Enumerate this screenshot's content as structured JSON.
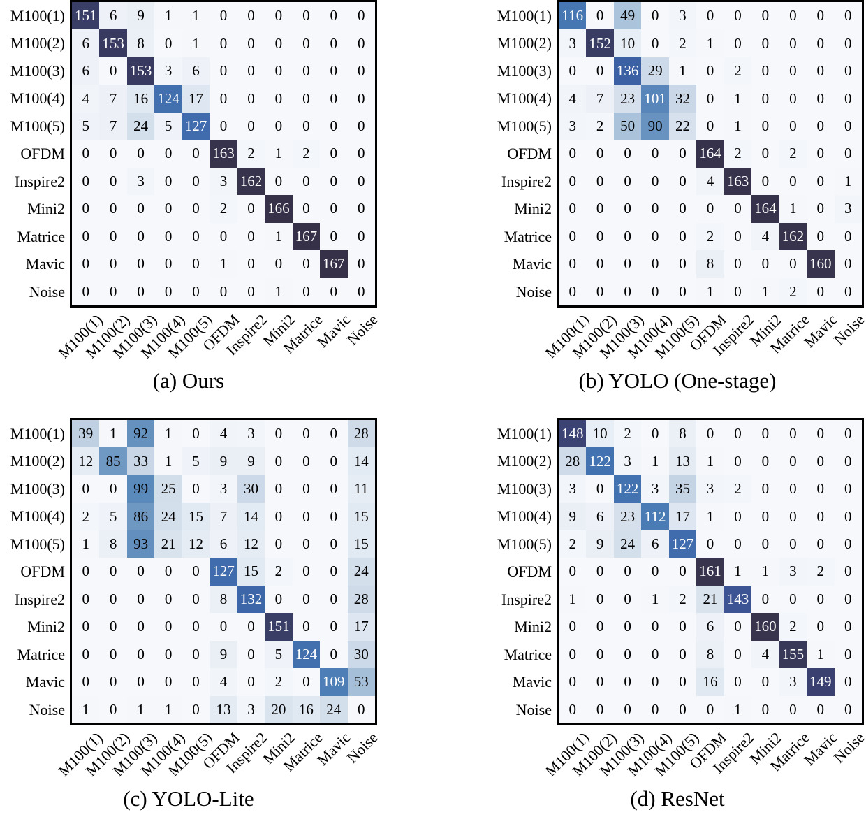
{
  "figure": {
    "background": "#ffffff",
    "grid_border_color": "#000000",
    "text_color": "#000000",
    "colormap": {
      "vmin": 0,
      "vmax": 167,
      "text_dark": "#000000",
      "text_light": "#ffffff",
      "white_text_threshold": 100,
      "stops": [
        [
          0,
          "#f6f8fb"
        ],
        [
          6,
          "#eef2f8"
        ],
        [
          12,
          "#e5ecf4"
        ],
        [
          18,
          "#dde6f0"
        ],
        [
          24,
          "#d4dfec"
        ],
        [
          30,
          "#ccd9e8"
        ],
        [
          36,
          "#c3d3e4"
        ],
        [
          45,
          "#b3c9de"
        ],
        [
          55,
          "#a1bdd7"
        ],
        [
          70,
          "#84a7ca"
        ],
        [
          85,
          "#6f99c2"
        ],
        [
          95,
          "#608dbd"
        ],
        [
          105,
          "#5282b8"
        ],
        [
          115,
          "#4778b3"
        ],
        [
          124,
          "#4270af"
        ],
        [
          132,
          "#3d66a9"
        ],
        [
          138,
          "#3c5da1"
        ],
        [
          143,
          "#3c5494"
        ],
        [
          148,
          "#3b4374"
        ],
        [
          153,
          "#383a5f"
        ],
        [
          158,
          "#393550"
        ],
        [
          167,
          "#363148"
        ]
      ]
    }
  },
  "chart_data": [
    {
      "type": "heatmap",
      "title": "(a) Ours",
      "x_labels": [
        "M100(1)",
        "M100(2)",
        "M100(3)",
        "M100(4)",
        "M100(5)",
        "OFDM",
        "Inspire2",
        "Mini2",
        "Matrice",
        "Mavic",
        "Noise"
      ],
      "y_labels": [
        "M100(1)",
        "M100(2)",
        "M100(3)",
        "M100(4)",
        "M100(5)",
        "OFDM",
        "Inspire2",
        "Mini2",
        "Matrice",
        "Mavic",
        "Noise"
      ],
      "values": [
        [
          151,
          6,
          9,
          1,
          1,
          0,
          0,
          0,
          0,
          0,
          0
        ],
        [
          6,
          153,
          8,
          0,
          1,
          0,
          0,
          0,
          0,
          0,
          0
        ],
        [
          6,
          0,
          153,
          3,
          6,
          0,
          0,
          0,
          0,
          0,
          0
        ],
        [
          4,
          7,
          16,
          124,
          17,
          0,
          0,
          0,
          0,
          0,
          0
        ],
        [
          5,
          7,
          24,
          5,
          127,
          0,
          0,
          0,
          0,
          0,
          0
        ],
        [
          0,
          0,
          0,
          0,
          0,
          163,
          2,
          1,
          2,
          0,
          0
        ],
        [
          0,
          0,
          3,
          0,
          0,
          3,
          162,
          0,
          0,
          0,
          0
        ],
        [
          0,
          0,
          0,
          0,
          0,
          2,
          0,
          166,
          0,
          0,
          0
        ],
        [
          0,
          0,
          0,
          0,
          0,
          0,
          0,
          1,
          167,
          0,
          0
        ],
        [
          0,
          0,
          0,
          0,
          0,
          1,
          0,
          0,
          0,
          167,
          0
        ],
        [
          0,
          0,
          0,
          0,
          0,
          0,
          0,
          1,
          0,
          0,
          0
        ]
      ]
    },
    {
      "type": "heatmap",
      "title": "(b) YOLO (One-stage)",
      "x_labels": [
        "M100(1)",
        "M100(2)",
        "M100(3)",
        "M100(4)",
        "M100(5)",
        "OFDM",
        "Inspire2",
        "Mini2",
        "Matrice",
        "Mavic",
        "Noise"
      ],
      "y_labels": [
        "M100(1)",
        "M100(2)",
        "M100(3)",
        "M100(4)",
        "M100(5)",
        "OFDM",
        "Inspire2",
        "Mini2",
        "Matrice",
        "Mavic",
        "Noise"
      ],
      "values": [
        [
          116,
          0,
          49,
          0,
          3,
          0,
          0,
          0,
          0,
          0,
          0
        ],
        [
          3,
          152,
          10,
          0,
          2,
          1,
          0,
          0,
          0,
          0,
          0
        ],
        [
          0,
          0,
          136,
          29,
          1,
          0,
          2,
          0,
          0,
          0,
          0
        ],
        [
          4,
          7,
          23,
          101,
          32,
          0,
          1,
          0,
          0,
          0,
          0
        ],
        [
          3,
          2,
          50,
          90,
          22,
          0,
          1,
          0,
          0,
          0,
          0
        ],
        [
          0,
          0,
          0,
          0,
          0,
          164,
          2,
          0,
          2,
          0,
          0
        ],
        [
          0,
          0,
          0,
          0,
          0,
          4,
          163,
          0,
          0,
          0,
          1
        ],
        [
          0,
          0,
          0,
          0,
          0,
          0,
          0,
          164,
          1,
          0,
          3
        ],
        [
          0,
          0,
          0,
          0,
          0,
          2,
          0,
          4,
          162,
          0,
          0
        ],
        [
          0,
          0,
          0,
          0,
          0,
          8,
          0,
          0,
          0,
          160,
          0
        ],
        [
          0,
          0,
          0,
          0,
          0,
          1,
          0,
          1,
          2,
          0,
          0
        ]
      ]
    },
    {
      "type": "heatmap",
      "title": "(c) YOLO-Lite",
      "x_labels": [
        "M100(1)",
        "M100(2)",
        "M100(3)",
        "M100(4)",
        "M100(5)",
        "OFDM",
        "Inspire2",
        "Mini2",
        "Matrice",
        "Mavic",
        "Noise"
      ],
      "y_labels": [
        "M100(1)",
        "M100(2)",
        "M100(3)",
        "M100(4)",
        "M100(5)",
        "OFDM",
        "Inspire2",
        "Mini2",
        "Matrice",
        "Mavic",
        "Noise"
      ],
      "values": [
        [
          39,
          1,
          92,
          1,
          0,
          4,
          3,
          0,
          0,
          0,
          28
        ],
        [
          12,
          85,
          33,
          1,
          5,
          9,
          9,
          0,
          0,
          0,
          14
        ],
        [
          0,
          0,
          99,
          25,
          0,
          3,
          30,
          0,
          0,
          0,
          11
        ],
        [
          2,
          5,
          86,
          24,
          15,
          7,
          14,
          0,
          0,
          0,
          15
        ],
        [
          1,
          8,
          93,
          21,
          12,
          6,
          12,
          0,
          0,
          0,
          15
        ],
        [
          0,
          0,
          0,
          0,
          0,
          127,
          15,
          2,
          0,
          0,
          24
        ],
        [
          0,
          0,
          0,
          0,
          0,
          8,
          132,
          0,
          0,
          0,
          28
        ],
        [
          0,
          0,
          0,
          0,
          0,
          0,
          0,
          151,
          0,
          0,
          17
        ],
        [
          0,
          0,
          0,
          0,
          0,
          9,
          0,
          5,
          124,
          0,
          30
        ],
        [
          0,
          0,
          0,
          0,
          0,
          4,
          0,
          2,
          0,
          109,
          53
        ],
        [
          1,
          0,
          1,
          1,
          0,
          13,
          3,
          20,
          16,
          24,
          0
        ]
      ]
    },
    {
      "type": "heatmap",
      "title": "(d) ResNet",
      "x_labels": [
        "M100(1)",
        "M100(2)",
        "M100(3)",
        "M100(4)",
        "M100(5)",
        "OFDM",
        "Inspire2",
        "Mini2",
        "Matrice",
        "Mavic",
        "Noise"
      ],
      "y_labels": [
        "M100(1)",
        "M100(2)",
        "M100(3)",
        "M100(4)",
        "M100(5)",
        "OFDM",
        "Inspire2",
        "Mini2",
        "Matrice",
        "Mavic",
        "Noise"
      ],
      "values": [
        [
          148,
          10,
          2,
          0,
          8,
          0,
          0,
          0,
          0,
          0,
          0
        ],
        [
          28,
          122,
          3,
          1,
          13,
          1,
          0,
          0,
          0,
          0,
          0
        ],
        [
          3,
          0,
          122,
          3,
          35,
          3,
          2,
          0,
          0,
          0,
          0
        ],
        [
          9,
          6,
          23,
          112,
          17,
          1,
          0,
          0,
          0,
          0,
          0
        ],
        [
          2,
          9,
          24,
          6,
          127,
          0,
          0,
          0,
          0,
          0,
          0
        ],
        [
          0,
          0,
          0,
          0,
          0,
          161,
          1,
          1,
          3,
          2,
          0
        ],
        [
          1,
          0,
          0,
          1,
          2,
          21,
          143,
          0,
          0,
          0,
          0
        ],
        [
          0,
          0,
          0,
          0,
          0,
          6,
          0,
          160,
          2,
          0,
          0
        ],
        [
          0,
          0,
          0,
          0,
          0,
          8,
          0,
          4,
          155,
          1,
          0
        ],
        [
          0,
          0,
          0,
          0,
          0,
          16,
          0,
          0,
          3,
          149,
          0
        ],
        [
          0,
          0,
          0,
          0,
          0,
          0,
          1,
          0,
          0,
          0,
          0
        ]
      ]
    }
  ]
}
